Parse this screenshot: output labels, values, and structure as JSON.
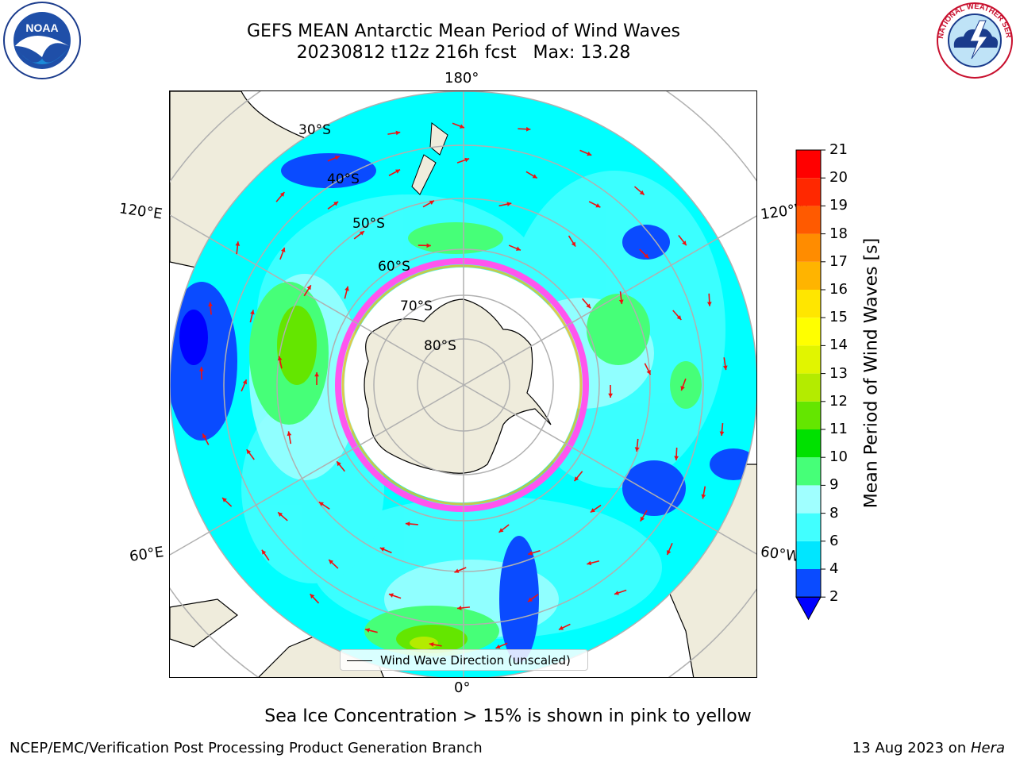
{
  "title_line1": "GEFS MEAN Antarctic Mean Period of Wind Waves",
  "title_line2": "20230812 t12z 216h fcst   Max: 13.28",
  "caption": "Sea Ice Concentration > 15% is shown in pink to yellow",
  "footer_left": "NCEP/EMC/Verification Post Processing Product Generation Branch",
  "footer_date": "13 Aug 2023 on ",
  "footer_machine": "Hera",
  "legend_label": "Wind Wave Direction (unscaled)",
  "colorbar": {
    "label": "Mean Period of Wind Waves [s]",
    "ticks": [
      "2",
      "4",
      "6",
      "8",
      "9",
      "10",
      "11",
      "12",
      "13",
      "14",
      "15",
      "16",
      "17",
      "18",
      "19",
      "20",
      "21"
    ],
    "colors": [
      "#0a4bff",
      "#00e6ff",
      "#41ffff",
      "#a0ffff",
      "#46ff78",
      "#00e100",
      "#64e600",
      "#b4eb00",
      "#e1f500",
      "#ffff00",
      "#ffe600",
      "#ffb400",
      "#ff8c00",
      "#ff5a00",
      "#ff2800",
      "#ff0000"
    ],
    "under_color": "#0000ff"
  },
  "map": {
    "lat_labels": [
      "30°S",
      "40°S",
      "50°S",
      "60°S",
      "70°S",
      "80°S"
    ],
    "lon_labels": {
      "top": "180°",
      "bottom": "0°",
      "left_upper": "120°E",
      "left_lower": "60°E",
      "right_upper": "120°W",
      "right_lower": "60°W"
    },
    "colors": {
      "ocean_base": "#00ffff",
      "land": "#efecdc",
      "ice_white": "#ffffff",
      "sea_ice_edge": "#ff55ee",
      "arrow": "#ee1111",
      "grid": "#b0b0b0"
    }
  },
  "logos": {
    "noaa_text": "NOAA",
    "nws_text": "NATIONAL WEATHER SERVICE"
  }
}
